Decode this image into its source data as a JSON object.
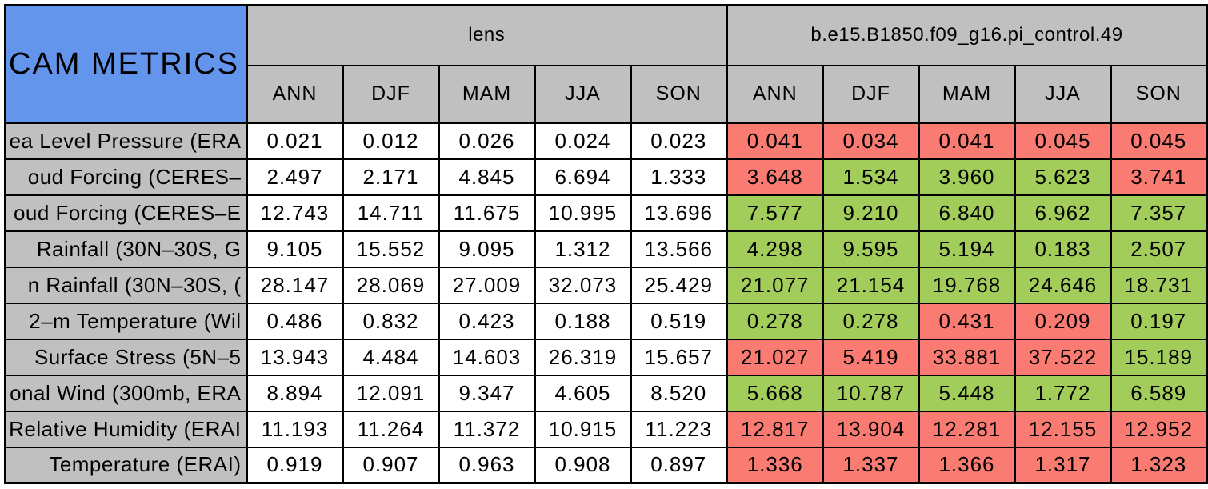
{
  "header": {
    "title": "CAM METRICS",
    "groups": [
      "lens",
      "b.e15.B1850.f09_g16.pi_control.49"
    ],
    "seasons": [
      "ANN",
      "DJF",
      "MAM",
      "JJA",
      "SON"
    ]
  },
  "colors": {
    "title_background": "#6495ED",
    "header_background": "#C0C0C0",
    "cell_green": "#A2CD5A",
    "cell_red": "#F97B72",
    "border": "#000000"
  },
  "chart_data": {
    "type": "table",
    "title": "CAM METRICS",
    "column_groups": [
      "lens",
      "b.e15.B1850.f09_g16.pi_control.49"
    ],
    "seasons": [
      "ANN",
      "DJF",
      "MAM",
      "JJA",
      "SON"
    ],
    "rows": [
      {
        "label": "ea Level Pressure (ERA",
        "lens": [
          "0.021",
          "0.012",
          "0.026",
          "0.024",
          "0.023"
        ],
        "control": [
          "0.041",
          "0.034",
          "0.041",
          "0.045",
          "0.045"
        ],
        "control_colors": [
          "red",
          "red",
          "red",
          "red",
          "red"
        ]
      },
      {
        "label": "oud Forcing (CERES–",
        "lens": [
          "2.497",
          "2.171",
          "4.845",
          "6.694",
          "1.333"
        ],
        "control": [
          "3.648",
          "1.534",
          "3.960",
          "5.623",
          "3.741"
        ],
        "control_colors": [
          "red",
          "green",
          "green",
          "green",
          "red"
        ]
      },
      {
        "label": "oud Forcing (CERES–E",
        "lens": [
          "12.743",
          "14.711",
          "11.675",
          "10.995",
          "13.696"
        ],
        "control": [
          "7.577",
          "9.210",
          "6.840",
          "6.962",
          "7.357"
        ],
        "control_colors": [
          "green",
          "green",
          "green",
          "green",
          "green"
        ]
      },
      {
        "label": "Rainfall (30N–30S, G",
        "lens": [
          "9.105",
          "15.552",
          "9.095",
          "1.312",
          "13.566"
        ],
        "control": [
          "4.298",
          "9.595",
          "5.194",
          "0.183",
          "2.507"
        ],
        "control_colors": [
          "green",
          "green",
          "green",
          "green",
          "green"
        ]
      },
      {
        "label": "n Rainfall (30N–30S, (",
        "lens": [
          "28.147",
          "28.069",
          "27.009",
          "32.073",
          "25.429"
        ],
        "control": [
          "21.077",
          "21.154",
          "19.768",
          "24.646",
          "18.731"
        ],
        "control_colors": [
          "green",
          "green",
          "green",
          "green",
          "green"
        ]
      },
      {
        "label": "2–m Temperature (Wil",
        "lens": [
          "0.486",
          "0.832",
          "0.423",
          "0.188",
          "0.519"
        ],
        "control": [
          "0.278",
          "0.278",
          "0.431",
          "0.209",
          "0.197"
        ],
        "control_colors": [
          "green",
          "green",
          "red",
          "red",
          "green"
        ]
      },
      {
        "label": "Surface Stress (5N–5",
        "lens": [
          "13.943",
          "4.484",
          "14.603",
          "26.319",
          "15.657"
        ],
        "control": [
          "21.027",
          "5.419",
          "33.881",
          "37.522",
          "15.189"
        ],
        "control_colors": [
          "red",
          "red",
          "red",
          "red",
          "green"
        ]
      },
      {
        "label": "onal Wind (300mb, ERA",
        "lens": [
          "8.894",
          "12.091",
          "9.347",
          "4.605",
          "8.520"
        ],
        "control": [
          "5.668",
          "10.787",
          "5.448",
          "1.772",
          "6.589"
        ],
        "control_colors": [
          "green",
          "green",
          "green",
          "green",
          "green"
        ]
      },
      {
        "label": "Relative Humidity (ERAI",
        "lens": [
          "11.193",
          "11.264",
          "11.372",
          "10.915",
          "11.223"
        ],
        "control": [
          "12.817",
          "13.904",
          "12.281",
          "12.155",
          "12.952"
        ],
        "control_colors": [
          "red",
          "red",
          "red",
          "red",
          "red"
        ]
      },
      {
        "label": "Temperature (ERAI)",
        "lens": [
          "0.919",
          "0.907",
          "0.963",
          "0.908",
          "0.897"
        ],
        "control": [
          "1.336",
          "1.337",
          "1.366",
          "1.317",
          "1.323"
        ],
        "control_colors": [
          "red",
          "red",
          "red",
          "red",
          "red"
        ]
      }
    ]
  }
}
